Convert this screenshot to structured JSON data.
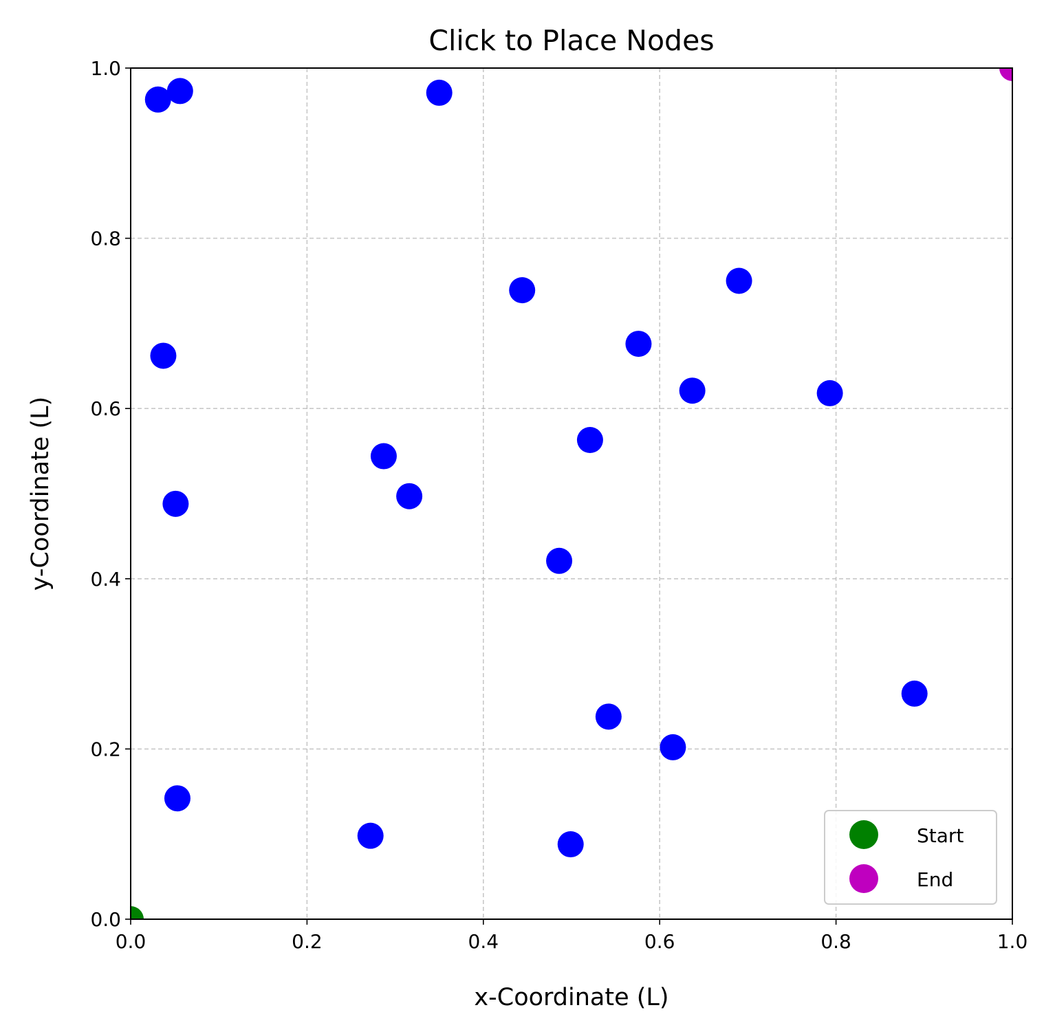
{
  "chart_data": {
    "type": "scatter",
    "title": "Click to Place Nodes",
    "xlabel": "x-Coordinate (L)",
    "ylabel": "y-Coordinate (L)",
    "xlim": [
      0,
      1
    ],
    "ylim": [
      0,
      1
    ],
    "xticks": [
      0.0,
      0.2,
      0.4,
      0.6,
      0.8,
      1.0
    ],
    "yticks": [
      0.0,
      0.2,
      0.4,
      0.6,
      0.8,
      1.0
    ],
    "xtick_labels": [
      "0.0",
      "0.2",
      "0.4",
      "0.6",
      "0.8",
      "1.0"
    ],
    "ytick_labels": [
      "0.0",
      "0.2",
      "0.4",
      "0.6",
      "0.8",
      "1.0"
    ],
    "grid": true,
    "legend_position": "bottom-right",
    "series": [
      {
        "color": "#0000ff",
        "points": [
          {
            "x": 0.031,
            "y": 0.963
          },
          {
            "x": 0.056,
            "y": 0.973
          },
          {
            "x": 0.35,
            "y": 0.971
          },
          {
            "x": 0.444,
            "y": 0.739
          },
          {
            "x": 0.69,
            "y": 0.75
          },
          {
            "x": 0.576,
            "y": 0.676
          },
          {
            "x": 0.037,
            "y": 0.662
          },
          {
            "x": 0.637,
            "y": 0.621
          },
          {
            "x": 0.793,
            "y": 0.618
          },
          {
            "x": 0.521,
            "y": 0.563
          },
          {
            "x": 0.287,
            "y": 0.544
          },
          {
            "x": 0.316,
            "y": 0.497
          },
          {
            "x": 0.051,
            "y": 0.488
          },
          {
            "x": 0.486,
            "y": 0.421
          },
          {
            "x": 0.889,
            "y": 0.265
          },
          {
            "x": 0.542,
            "y": 0.238
          },
          {
            "x": 0.615,
            "y": 0.202
          },
          {
            "x": 0.053,
            "y": 0.142
          },
          {
            "x": 0.272,
            "y": 0.098
          },
          {
            "x": 0.499,
            "y": 0.088
          }
        ]
      },
      {
        "name": "Start",
        "color": "#008000",
        "points": [
          {
            "x": 0.0,
            "y": 0.0
          }
        ]
      },
      {
        "name": "End",
        "color": "#bf00bf",
        "points": [
          {
            "x": 1.0,
            "y": 1.0
          }
        ]
      }
    ]
  }
}
